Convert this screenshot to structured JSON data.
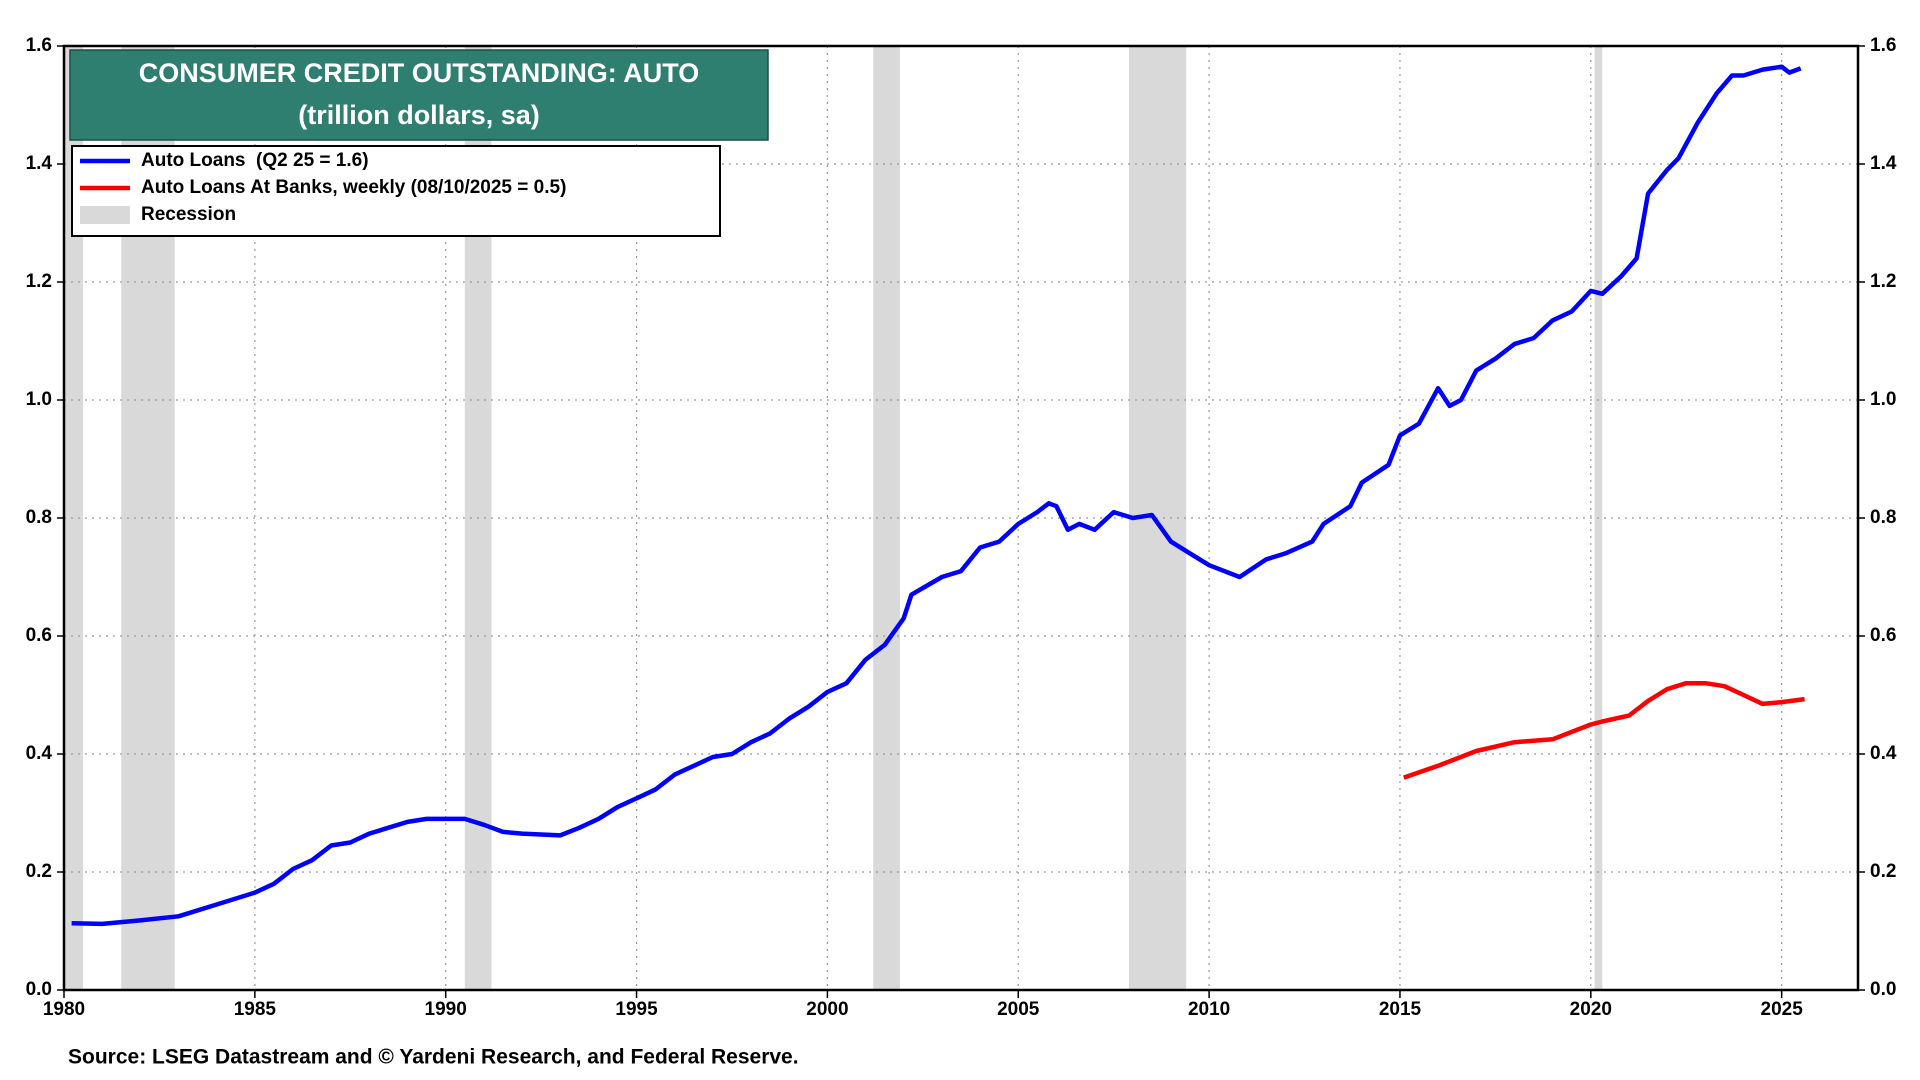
{
  "chart_data": {
    "type": "line",
    "title": "CONSUMER CREDIT OUTSTANDING: AUTO",
    "subtitle": "(trillion dollars, sa)",
    "source": "Source: LSEG Datastream and © Yardeni Research, and Federal Reserve.",
    "xlim": [
      1980,
      2027
    ],
    "xticks": [
      1980,
      1985,
      1990,
      1995,
      2000,
      2005,
      2010,
      2015,
      2020,
      2025
    ],
    "ylim": [
      0,
      1.6
    ],
    "yticks": [
      {
        "value": 0,
        "label": "0.0"
      },
      0.2,
      0.4,
      0.6,
      0.8,
      {
        "value": 1,
        "label": "1.0"
      },
      1.2,
      1.4,
      1.6
    ],
    "y2lim": [
      0,
      1.6
    ],
    "y2ticks": [
      {
        "value": 0,
        "label": "0.0"
      },
      0.2,
      0.4,
      0.6,
      0.8,
      {
        "value": 1,
        "label": "1.0"
      },
      1.2,
      1.4,
      1.6
    ],
    "grid": true,
    "recessions": {
      "name": "Recession",
      "color": "#d9d9d9",
      "spans": [
        [
          1980.0,
          1980.5
        ],
        [
          1981.5,
          1982.9
        ],
        [
          1990.5,
          1991.2
        ],
        [
          2001.2,
          2001.9
        ],
        [
          2007.9,
          2009.4
        ],
        [
          2020.1,
          2020.3
        ]
      ]
    },
    "series": [
      {
        "name": "Auto Loans  (Q2 25 = 1.6)",
        "color": "#0000ff",
        "x": [
          1980.2,
          1981,
          1982,
          1983,
          1984,
          1985,
          1985.5,
          1986,
          1986.5,
          1987,
          1987.5,
          1988,
          1989,
          1989.5,
          1990,
          1990.5,
          1991,
          1991.5,
          1992,
          1993,
          1993.5,
          1994,
          1994.5,
          1995,
          1995.5,
          1996,
          1996.5,
          1997,
          1997.5,
          1998,
          1998.5,
          1999,
          1999.5,
          2000,
          2000.5,
          2001,
          2001.5,
          2002,
          2002.2,
          2003,
          2003.5,
          2004,
          2004.5,
          2005,
          2005.5,
          2005.8,
          2006,
          2006.3,
          2006.6,
          2007,
          2007.5,
          2008,
          2008.5,
          2009,
          2009.5,
          2010,
          2010.8,
          2011.5,
          2012,
          2012.7,
          2013,
          2013.7,
          2014,
          2014.7,
          2015,
          2015.5,
          2016,
          2016.3,
          2016.6,
          2017,
          2017.5,
          2018,
          2018.5,
          2019,
          2019.5,
          2020,
          2020.3,
          2020.8,
          2021.2,
          2021.5,
          2022,
          2022.3,
          2022.8,
          2023.3,
          2023.7,
          2024,
          2024.5,
          2025,
          2025.2,
          2025.5
        ],
        "values": [
          0.113,
          0.112,
          0.118,
          0.125,
          0.145,
          0.165,
          0.18,
          0.205,
          0.22,
          0.245,
          0.25,
          0.265,
          0.285,
          0.29,
          0.29,
          0.29,
          0.28,
          0.268,
          0.265,
          0.262,
          0.275,
          0.29,
          0.31,
          0.325,
          0.34,
          0.365,
          0.38,
          0.395,
          0.4,
          0.42,
          0.435,
          0.46,
          0.48,
          0.505,
          0.52,
          0.56,
          0.585,
          0.63,
          0.67,
          0.7,
          0.71,
          0.75,
          0.76,
          0.79,
          0.81,
          0.825,
          0.82,
          0.78,
          0.79,
          0.78,
          0.81,
          0.8,
          0.805,
          0.76,
          0.74,
          0.72,
          0.7,
          0.73,
          0.74,
          0.76,
          0.79,
          0.82,
          0.86,
          0.89,
          0.94,
          0.96,
          1.02,
          0.99,
          1.0,
          1.05,
          1.07,
          1.095,
          1.105,
          1.135,
          1.15,
          1.185,
          1.18,
          1.21,
          1.24,
          1.35,
          1.39,
          1.41,
          1.47,
          1.52,
          1.55,
          1.55,
          1.56,
          1.565,
          1.555,
          1.562
        ]
      },
      {
        "name": "Auto Loans At Banks, weekly (08/10/2025 = 0.5)",
        "color": "#ff0000",
        "x": [
          2015.1,
          2016,
          2017,
          2018,
          2019,
          2020,
          2020.3,
          2021,
          2021.5,
          2022,
          2022.5,
          2023,
          2023.5,
          2024,
          2024.5,
          2025,
          2025.6
        ],
        "values": [
          0.36,
          0.38,
          0.405,
          0.42,
          0.425,
          0.45,
          0.455,
          0.465,
          0.49,
          0.51,
          0.52,
          0.52,
          0.515,
          0.5,
          0.485,
          0.488,
          0.493
        ]
      }
    ]
  }
}
